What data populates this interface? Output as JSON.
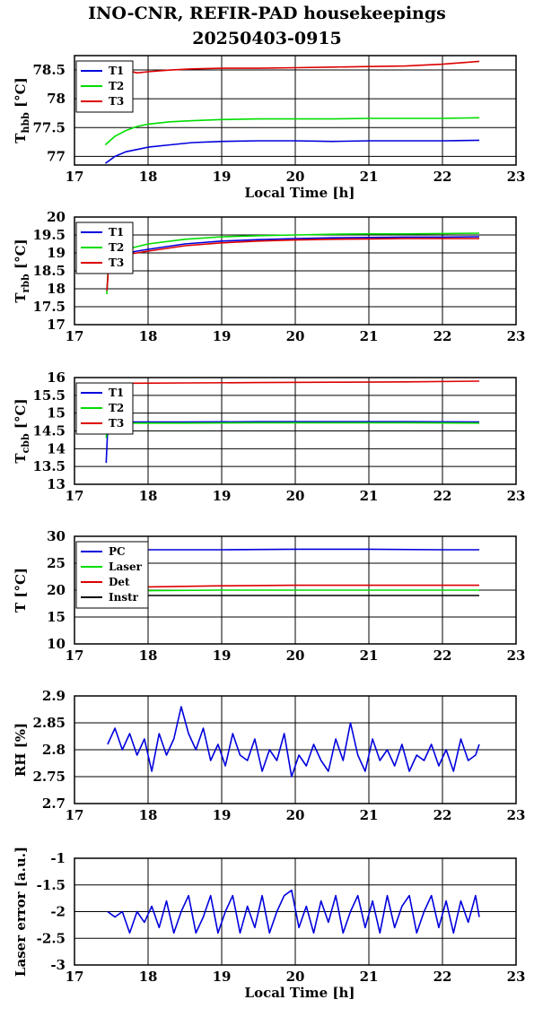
{
  "title_line1": "INO-CNR, REFIR-PAD housekeepings",
  "title_line2": "20250403-0915",
  "colors": {
    "blue": "#0000dd",
    "green": "#00dd00",
    "red": "#dd0000",
    "black": "#000000"
  },
  "chart_data": [
    {
      "type": "line",
      "ylabel": "T",
      "ylabel_sub": "hbb",
      "ylabel_unit": "[°C]",
      "xlabel": "Local Time [h]",
      "xlim": [
        17,
        23
      ],
      "ylim": [
        76.85,
        78.75
      ],
      "xticks": [
        "17",
        "18",
        "19",
        "20",
        "21",
        "22",
        "23"
      ],
      "yticks": [
        77,
        77.5,
        78,
        78.5
      ],
      "ytick_labels": [
        "77",
        "77.5",
        "78",
        "78.5"
      ],
      "grid": true,
      "legend": "top-left",
      "series": [
        {
          "name": "T1",
          "color": "blue",
          "x": [
            17.42,
            17.55,
            17.7,
            17.85,
            18.0,
            18.3,
            18.6,
            19.0,
            19.5,
            20.0,
            20.5,
            21.0,
            21.5,
            22.0,
            22.5
          ],
          "y": [
            76.88,
            77.0,
            77.08,
            77.12,
            77.16,
            77.2,
            77.24,
            77.26,
            77.27,
            77.27,
            77.26,
            77.27,
            77.27,
            77.27,
            77.28
          ]
        },
        {
          "name": "T2",
          "color": "green",
          "x": [
            17.42,
            17.55,
            17.7,
            17.85,
            18.0,
            18.3,
            18.6,
            19.0,
            19.5,
            20.0,
            20.5,
            21.0,
            21.5,
            22.0,
            22.5
          ],
          "y": [
            77.2,
            77.35,
            77.45,
            77.52,
            77.56,
            77.6,
            77.62,
            77.64,
            77.65,
            77.65,
            77.65,
            77.66,
            77.66,
            77.66,
            77.67
          ]
        },
        {
          "name": "T3",
          "color": "red",
          "x": [
            17.42,
            17.55,
            17.7,
            17.85,
            18.0,
            18.3,
            18.6,
            19.0,
            19.5,
            20.0,
            20.5,
            21.0,
            21.5,
            22.0,
            22.5
          ],
          "y": [
            78.5,
            78.48,
            78.5,
            78.45,
            78.47,
            78.5,
            78.52,
            78.53,
            78.53,
            78.54,
            78.55,
            78.56,
            78.57,
            78.6,
            78.65
          ]
        }
      ]
    },
    {
      "type": "line",
      "ylabel": "T",
      "ylabel_sub": "rbb",
      "ylabel_unit": "[°C]",
      "xlabel": "",
      "xlim": [
        17,
        23
      ],
      "ylim": [
        17,
        20
      ],
      "xticks": [
        "17",
        "18",
        "19",
        "20",
        "21",
        "22",
        "23"
      ],
      "yticks": [
        17,
        17.5,
        18,
        18.5,
        19,
        19.5,
        20
      ],
      "ytick_labels": [
        "17",
        "17.5",
        "18",
        "18.5",
        "19",
        "19.5",
        "20"
      ],
      "grid": true,
      "legend": "top-left",
      "series": [
        {
          "name": "T1",
          "color": "blue",
          "x": [
            17.44,
            17.46,
            17.5,
            17.7,
            18.0,
            18.5,
            19.0,
            19.5,
            20.0,
            20.5,
            21.0,
            21.5,
            22.0,
            22.5
          ],
          "y": [
            17.9,
            18.6,
            18.85,
            19.0,
            19.1,
            19.25,
            19.33,
            19.37,
            19.4,
            19.42,
            19.43,
            19.44,
            19.44,
            19.45
          ]
        },
        {
          "name": "T2",
          "color": "green",
          "x": [
            17.44,
            17.46,
            17.5,
            17.7,
            18.0,
            18.5,
            19.0,
            19.5,
            20.0,
            20.5,
            21.0,
            21.5,
            22.0,
            22.5
          ],
          "y": [
            17.85,
            18.7,
            18.95,
            19.1,
            19.25,
            19.38,
            19.45,
            19.48,
            19.5,
            19.52,
            19.53,
            19.53,
            19.54,
            19.55
          ]
        },
        {
          "name": "T3",
          "color": "red",
          "x": [
            17.44,
            17.46,
            17.5,
            17.7,
            18.0,
            18.5,
            19.0,
            19.5,
            20.0,
            20.5,
            21.0,
            21.5,
            22.0,
            22.5
          ],
          "y": [
            17.95,
            18.5,
            18.8,
            18.95,
            19.05,
            19.2,
            19.28,
            19.33,
            19.36,
            19.38,
            19.39,
            19.4,
            19.4,
            19.4
          ]
        }
      ]
    },
    {
      "type": "line",
      "ylabel": "T",
      "ylabel_sub": "cbb",
      "ylabel_unit": "[°C]",
      "xlabel": "",
      "xlim": [
        17,
        23
      ],
      "ylim": [
        13,
        16
      ],
      "xticks": [
        "17",
        "18",
        "19",
        "20",
        "21",
        "22",
        "23"
      ],
      "yticks": [
        13,
        13.5,
        14,
        14.5,
        15,
        15.5,
        16
      ],
      "ytick_labels": [
        "13",
        "13.5",
        "14",
        "14.5",
        "15",
        "15.5",
        "16"
      ],
      "grid": true,
      "legend": "top-left",
      "series": [
        {
          "name": "T1",
          "color": "blue",
          "x": [
            17.43,
            17.45,
            17.5,
            17.8,
            18.5,
            19.5,
            20.5,
            21.5,
            22.5
          ],
          "y": [
            13.6,
            14.5,
            14.72,
            14.75,
            14.75,
            14.76,
            14.76,
            14.76,
            14.75
          ]
        },
        {
          "name": "T2",
          "color": "green",
          "x": [
            17.43,
            17.45,
            17.5,
            17.8,
            18.5,
            19.5,
            20.5,
            21.5,
            22.5
          ],
          "y": [
            14.3,
            14.6,
            14.7,
            14.72,
            14.72,
            14.73,
            14.73,
            14.73,
            14.72
          ]
        },
        {
          "name": "T3",
          "color": "red",
          "x": [
            17.43,
            17.45,
            17.5,
            17.8,
            18.5,
            19.5,
            20.5,
            21.5,
            22.5
          ],
          "y": [
            15.8,
            15.82,
            15.83,
            15.84,
            15.85,
            15.86,
            15.87,
            15.88,
            15.9
          ]
        }
      ]
    },
    {
      "type": "line",
      "ylabel": "T [°C]",
      "ylabel_sub": "",
      "ylabel_unit": "",
      "xlabel": "",
      "xlim": [
        17,
        23
      ],
      "ylim": [
        10,
        30
      ],
      "xticks": [
        "17",
        "18",
        "19",
        "20",
        "21",
        "22",
        "23"
      ],
      "yticks": [
        10,
        15,
        20,
        25,
        30
      ],
      "ytick_labels": [
        "10",
        "15",
        "20",
        "25",
        "30"
      ],
      "grid": true,
      "legend": "top-left",
      "series": [
        {
          "name": "PC",
          "color": "blue",
          "x": [
            17.45,
            18.0,
            19.0,
            20.0,
            21.0,
            22.0,
            22.5
          ],
          "y": [
            27.4,
            27.5,
            27.5,
            27.6,
            27.6,
            27.5,
            27.5
          ]
        },
        {
          "name": "Laser",
          "color": "green",
          "x": [
            17.45,
            18.0,
            19.0,
            20.0,
            21.0,
            22.0,
            22.5
          ],
          "y": [
            19.8,
            19.9,
            20.0,
            20.0,
            20.0,
            20.0,
            20.0
          ]
        },
        {
          "name": "Det",
          "color": "red",
          "x": [
            17.45,
            18.0,
            19.0,
            20.0,
            21.0,
            22.0,
            22.5
          ],
          "y": [
            20.3,
            20.6,
            20.8,
            20.9,
            20.9,
            20.9,
            20.9
          ]
        },
        {
          "name": "Instr",
          "color": "black",
          "x": [
            17.45,
            18.0,
            19.0,
            20.0,
            21.0,
            22.0,
            22.5
          ],
          "y": [
            18.9,
            19.0,
            19.0,
            19.0,
            19.0,
            19.0,
            19.0
          ]
        }
      ]
    },
    {
      "type": "line",
      "ylabel": "RH [%]",
      "ylabel_sub": "",
      "ylabel_unit": "",
      "xlabel": "",
      "xlim": [
        17,
        23
      ],
      "ylim": [
        2.7,
        2.9
      ],
      "xticks": [
        "17",
        "18",
        "19",
        "20",
        "21",
        "22",
        "23"
      ],
      "yticks": [
        2.7,
        2.75,
        2.8,
        2.85,
        2.9
      ],
      "ytick_labels": [
        "2.7",
        "2.75",
        "2.8",
        "2.85",
        "2.9"
      ],
      "grid": true,
      "legend": "none",
      "series": [
        {
          "name": "",
          "color": "blue",
          "x": [
            17.45,
            17.55,
            17.65,
            17.75,
            17.85,
            17.95,
            18.05,
            18.15,
            18.25,
            18.35,
            18.45,
            18.55,
            18.65,
            18.75,
            18.85,
            18.95,
            19.05,
            19.15,
            19.25,
            19.35,
            19.45,
            19.55,
            19.65,
            19.75,
            19.85,
            19.95,
            20.05,
            20.15,
            20.25,
            20.35,
            20.45,
            20.55,
            20.65,
            20.75,
            20.85,
            20.95,
            21.05,
            21.15,
            21.25,
            21.35,
            21.45,
            21.55,
            21.65,
            21.75,
            21.85,
            21.95,
            22.05,
            22.15,
            22.25,
            22.35,
            22.45,
            22.5
          ],
          "y": [
            2.81,
            2.84,
            2.8,
            2.83,
            2.79,
            2.82,
            2.76,
            2.83,
            2.79,
            2.82,
            2.88,
            2.83,
            2.8,
            2.84,
            2.78,
            2.81,
            2.77,
            2.83,
            2.79,
            2.78,
            2.82,
            2.76,
            2.8,
            2.78,
            2.83,
            2.75,
            2.79,
            2.77,
            2.81,
            2.78,
            2.76,
            2.82,
            2.78,
            2.85,
            2.79,
            2.76,
            2.82,
            2.78,
            2.8,
            2.77,
            2.81,
            2.76,
            2.79,
            2.78,
            2.81,
            2.77,
            2.8,
            2.76,
            2.82,
            2.78,
            2.79,
            2.81
          ]
        }
      ]
    },
    {
      "type": "line",
      "ylabel": "Laser error [a.u.]",
      "ylabel_sub": "",
      "ylabel_unit": "",
      "xlabel": "Local Time [h]",
      "xlim": [
        17,
        23
      ],
      "ylim": [
        -3,
        -1
      ],
      "xticks": [
        "17",
        "18",
        "19",
        "20",
        "21",
        "22",
        "23"
      ],
      "yticks": [
        -3,
        -2.5,
        -2,
        -1.5,
        -1
      ],
      "ytick_labels": [
        "-3",
        "-2.5",
        "-2",
        "-1.5",
        "-1"
      ],
      "grid": true,
      "legend": "none",
      "series": [
        {
          "name": "",
          "color": "blue",
          "x": [
            17.45,
            17.55,
            17.65,
            17.75,
            17.85,
            17.95,
            18.05,
            18.15,
            18.25,
            18.35,
            18.45,
            18.55,
            18.65,
            18.75,
            18.85,
            18.95,
            19.05,
            19.15,
            19.25,
            19.35,
            19.45,
            19.55,
            19.65,
            19.75,
            19.85,
            19.95,
            20.05,
            20.15,
            20.25,
            20.35,
            20.45,
            20.55,
            20.65,
            20.75,
            20.85,
            20.95,
            21.05,
            21.15,
            21.25,
            21.35,
            21.45,
            21.55,
            21.65,
            21.75,
            21.85,
            21.95,
            22.05,
            22.15,
            22.25,
            22.35,
            22.45,
            22.5
          ],
          "y": [
            -2.0,
            -2.1,
            -2.0,
            -2.4,
            -2.0,
            -2.2,
            -1.9,
            -2.3,
            -1.8,
            -2.4,
            -2.0,
            -1.7,
            -2.4,
            -2.1,
            -1.7,
            -2.4,
            -2.0,
            -1.7,
            -2.4,
            -1.9,
            -2.3,
            -1.7,
            -2.4,
            -2.0,
            -1.7,
            -1.6,
            -2.3,
            -1.9,
            -2.4,
            -1.8,
            -2.2,
            -1.7,
            -2.4,
            -2.0,
            -1.7,
            -2.3,
            -1.8,
            -2.4,
            -1.7,
            -2.3,
            -1.9,
            -1.7,
            -2.4,
            -2.0,
            -1.7,
            -2.3,
            -1.8,
            -2.4,
            -1.8,
            -2.2,
            -1.7,
            -2.1
          ]
        }
      ]
    }
  ]
}
